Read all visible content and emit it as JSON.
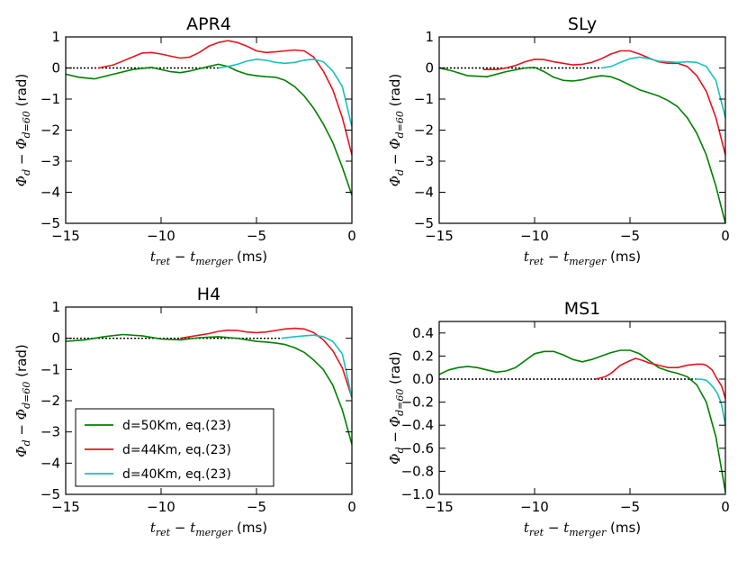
{
  "figure": {
    "xlabel_main": "t",
    "xlabel_sub1": "ret",
    "xlabel_minus": " − ",
    "xlabel_main2": "t",
    "xlabel_sub2": "merger",
    "xlabel_unit": " (ms)",
    "ylabel_phi": "Φ",
    "ylabel_sub1": "d",
    "ylabel_minus": " − ",
    "ylabel_phi2": "Φ",
    "ylabel_sub2": "d=60",
    "ylabel_unit": " (rad)"
  },
  "colors": {
    "d50": "#008000",
    "d44": "#e6141e",
    "d40": "#19c0c0",
    "reference": "#000000"
  },
  "legend": {
    "placement": "lower-left of H4 panel",
    "entries": [
      {
        "key": "d50",
        "label": "d=50Km, eq.(23)"
      },
      {
        "key": "d44",
        "label": "d=44Km, eq.(23)"
      },
      {
        "key": "d40",
        "label": "d=40Km, eq.(23)"
      }
    ]
  },
  "chart_data": [
    {
      "type": "line",
      "title": "APR4",
      "xlim": [
        -15,
        0
      ],
      "ylim": [
        -5,
        1
      ],
      "xticks": [
        -15,
        -10,
        -5,
        0
      ],
      "yticks": [
        1,
        0,
        -1,
        -2,
        -3,
        -4,
        -5
      ],
      "xticklabels": [
        "−15",
        "−10",
        "−5",
        "0"
      ],
      "yticklabels": [
        "1",
        "0",
        "−1",
        "−2",
        "−3",
        "−4",
        "−5"
      ],
      "reference_line": {
        "y": 0,
        "x": [
          -15,
          -7
        ],
        "style": "dotted"
      },
      "series": [
        {
          "key": "d50",
          "x": [
            -15,
            -14.3,
            -13.5,
            -12.5,
            -11.5,
            -10.5,
            -9.5,
            -9,
            -8.5,
            -7.5,
            -7,
            -6.5,
            -6,
            -5.5,
            -5,
            -4.5,
            -4,
            -3.5,
            -3,
            -2.5,
            -2,
            -1.5,
            -1,
            -0.5,
            0
          ],
          "y": [
            -0.2,
            -0.3,
            -0.35,
            -0.2,
            -0.05,
            0.02,
            -0.12,
            -0.15,
            -0.1,
            0.05,
            0.12,
            0.05,
            -0.1,
            -0.2,
            -0.25,
            -0.28,
            -0.3,
            -0.4,
            -0.6,
            -0.9,
            -1.3,
            -1.8,
            -2.4,
            -3.2,
            -4.1
          ]
        },
        {
          "key": "d44",
          "x": [
            -13.3,
            -12.5,
            -11.5,
            -11,
            -10.5,
            -10,
            -9.5,
            -9,
            -8.5,
            -8,
            -7.5,
            -7,
            -6.5,
            -6,
            -5.5,
            -5,
            -4.5,
            -4,
            -3.5,
            -3,
            -2.5,
            -2,
            -1.5,
            -1,
            -0.5,
            0
          ],
          "y": [
            0.0,
            0.1,
            0.35,
            0.48,
            0.5,
            0.45,
            0.38,
            0.32,
            0.35,
            0.5,
            0.7,
            0.82,
            0.88,
            0.82,
            0.7,
            0.55,
            0.5,
            0.52,
            0.55,
            0.58,
            0.55,
            0.35,
            -0.1,
            -0.7,
            -1.6,
            -2.8
          ]
        },
        {
          "key": "d40",
          "x": [
            -7,
            -6.5,
            -6,
            -5.5,
            -5,
            -4.5,
            -4,
            -3.5,
            -3,
            -2.5,
            -2,
            -1.5,
            -1,
            -0.5,
            0
          ],
          "y": [
            0.0,
            0.05,
            0.12,
            0.22,
            0.28,
            0.25,
            0.18,
            0.15,
            0.18,
            0.25,
            0.28,
            0.2,
            -0.1,
            -0.6,
            -1.9
          ]
        }
      ]
    },
    {
      "type": "line",
      "title": "SLy",
      "xlim": [
        -15,
        0
      ],
      "ylim": [
        -5,
        1
      ],
      "xticks": [
        -15,
        -10,
        -5,
        0
      ],
      "yticks": [
        1,
        0,
        -1,
        -2,
        -3,
        -4,
        -5
      ],
      "xticklabels": [
        "−15",
        "−10",
        "−5",
        "0"
      ],
      "yticklabels": [
        "1",
        "0",
        "−1",
        "−2",
        "−3",
        "−4",
        "−5"
      ],
      "reference_line": {
        "y": 0,
        "x": [
          -15,
          -6.5
        ],
        "style": "dotted"
      },
      "series": [
        {
          "key": "d50",
          "x": [
            -15,
            -14.3,
            -13.5,
            -12.5,
            -11.5,
            -10.5,
            -10,
            -9.5,
            -9,
            -8.5,
            -8,
            -7.5,
            -7,
            -6.5,
            -6,
            -5.5,
            -5,
            -4.5,
            -4,
            -3.5,
            -3,
            -2.5,
            -2,
            -1.5,
            -1,
            -0.5,
            0
          ],
          "y": [
            0.0,
            -0.1,
            -0.25,
            -0.28,
            -0.12,
            0.0,
            0.02,
            -0.12,
            -0.3,
            -0.4,
            -0.42,
            -0.38,
            -0.3,
            -0.25,
            -0.28,
            -0.4,
            -0.55,
            -0.7,
            -0.8,
            -0.9,
            -1.05,
            -1.25,
            -1.6,
            -2.1,
            -2.8,
            -3.8,
            -5.0
          ]
        },
        {
          "key": "d44",
          "x": [
            -12.7,
            -12,
            -11.5,
            -11,
            -10.5,
            -10,
            -9.5,
            -9,
            -8.5,
            -8,
            -7.5,
            -7,
            -6.5,
            -6,
            -5.5,
            -5,
            -4.5,
            -4,
            -3.5,
            -3,
            -2.5,
            -2,
            -1.5,
            -1,
            -0.5,
            0
          ],
          "y": [
            -0.05,
            -0.05,
            0.0,
            0.08,
            0.2,
            0.28,
            0.27,
            0.2,
            0.15,
            0.1,
            0.12,
            0.18,
            0.3,
            0.45,
            0.55,
            0.55,
            0.45,
            0.32,
            0.2,
            0.15,
            0.15,
            0.05,
            -0.25,
            -0.75,
            -1.6,
            -2.8
          ]
        },
        {
          "key": "d40",
          "x": [
            -6.5,
            -6,
            -5.5,
            -5,
            -4.5,
            -4,
            -3.5,
            -3,
            -2.5,
            -2,
            -1.5,
            -1,
            -0.5,
            0
          ],
          "y": [
            0.0,
            0.05,
            0.18,
            0.3,
            0.35,
            0.3,
            0.22,
            0.2,
            0.18,
            0.2,
            0.18,
            0.05,
            -0.4,
            -1.6
          ]
        }
      ]
    },
    {
      "type": "line",
      "title": "H4",
      "xlim": [
        -15,
        0
      ],
      "ylim": [
        -5,
        1
      ],
      "xticks": [
        -15,
        -10,
        -5,
        0
      ],
      "yticks": [
        1,
        0,
        -1,
        -2,
        -3,
        -4,
        -5
      ],
      "xticklabels": [
        "−15",
        "−10",
        "−5",
        "0"
      ],
      "yticklabels": [
        "1",
        "0",
        "−1",
        "−2",
        "−3",
        "−4",
        "−5"
      ],
      "reference_line": {
        "y": 0,
        "x": [
          -15,
          -3.7
        ],
        "style": "dotted"
      },
      "series": [
        {
          "key": "d50",
          "x": [
            -15,
            -14,
            -13,
            -12,
            -11,
            -10,
            -9,
            -8,
            -7,
            -6,
            -5,
            -4.5,
            -4,
            -3.5,
            -3,
            -2.5,
            -2,
            -1.5,
            -1,
            -0.5,
            0
          ],
          "y": [
            -0.1,
            -0.05,
            0.05,
            0.12,
            0.08,
            -0.02,
            -0.05,
            0.02,
            0.05,
            0.0,
            -0.1,
            -0.12,
            -0.15,
            -0.2,
            -0.3,
            -0.45,
            -0.7,
            -1.0,
            -1.5,
            -2.3,
            -3.4
          ]
        },
        {
          "key": "d44",
          "x": [
            -9,
            -8.5,
            -8,
            -7.5,
            -7,
            -6.5,
            -6,
            -5.5,
            -5,
            -4.5,
            -4,
            -3.5,
            -3,
            -2.5,
            -2,
            -1.5,
            -1,
            -0.5,
            0
          ],
          "y": [
            0.0,
            0.05,
            0.1,
            0.15,
            0.22,
            0.26,
            0.25,
            0.2,
            0.18,
            0.2,
            0.25,
            0.3,
            0.32,
            0.3,
            0.18,
            -0.05,
            -0.4,
            -0.95,
            -1.9
          ]
        },
        {
          "key": "d40",
          "x": [
            -3.7,
            -3,
            -2.5,
            -2,
            -1.5,
            -1,
            -0.5,
            0
          ],
          "y": [
            0.0,
            0.05,
            0.08,
            0.1,
            0.05,
            -0.1,
            -0.5,
            -1.9
          ]
        }
      ]
    },
    {
      "type": "line",
      "title": "MS1",
      "xlim": [
        -15,
        0
      ],
      "ylim": [
        -1.0,
        0.5
      ],
      "xticks": [
        -15,
        -10,
        -5,
        0
      ],
      "yticks": [
        0.4,
        0.2,
        0.0,
        -0.2,
        -0.4,
        -0.6,
        -0.8,
        -1.0
      ],
      "xticklabels": [
        "−15",
        "−10",
        "−5",
        "0"
      ],
      "yticklabels": [
        "0.4",
        "0.2",
        "0.0",
        "−0.2",
        "−0.4",
        "−0.6",
        "−0.8",
        "−1.0"
      ],
      "reference_line": {
        "y": 0,
        "x": [
          -15,
          -1.5
        ],
        "style": "dotted"
      },
      "series": [
        {
          "key": "d50",
          "x": [
            -15,
            -14.5,
            -14,
            -13.5,
            -13,
            -12.5,
            -12,
            -11.5,
            -11,
            -10.5,
            -10,
            -9.5,
            -9,
            -8.5,
            -8,
            -7.5,
            -7,
            -6.5,
            -6,
            -5.5,
            -5,
            -4.5,
            -4,
            -3.5,
            -3,
            -2.5,
            -2,
            -1.5,
            -1,
            -0.5,
            0
          ],
          "y": [
            0.04,
            0.08,
            0.1,
            0.11,
            0.1,
            0.08,
            0.06,
            0.07,
            0.1,
            0.16,
            0.22,
            0.24,
            0.24,
            0.21,
            0.17,
            0.15,
            0.17,
            0.2,
            0.23,
            0.25,
            0.25,
            0.22,
            0.16,
            0.1,
            0.07,
            0.05,
            0.02,
            -0.05,
            -0.2,
            -0.5,
            -0.98
          ]
        },
        {
          "key": "d44",
          "x": [
            -6.8,
            -6.3,
            -6,
            -5.5,
            -5,
            -4.7,
            -4.3,
            -4,
            -3.5,
            -3,
            -2.5,
            -2,
            -1.5,
            -1.2,
            -1,
            -0.7,
            -0.5,
            -0.2,
            0
          ],
          "y": [
            0.0,
            0.02,
            0.05,
            0.12,
            0.16,
            0.18,
            0.16,
            0.14,
            0.12,
            0.1,
            0.1,
            0.12,
            0.13,
            0.13,
            0.12,
            0.08,
            0.02,
            -0.06,
            -0.17
          ]
        },
        {
          "key": "d40",
          "x": [
            -1.6,
            -1.3,
            -1,
            -0.8,
            -0.6,
            -0.4,
            -0.2,
            0
          ],
          "y": [
            0.0,
            0.0,
            -0.01,
            -0.04,
            -0.08,
            -0.13,
            -0.22,
            -0.4
          ]
        }
      ]
    }
  ]
}
